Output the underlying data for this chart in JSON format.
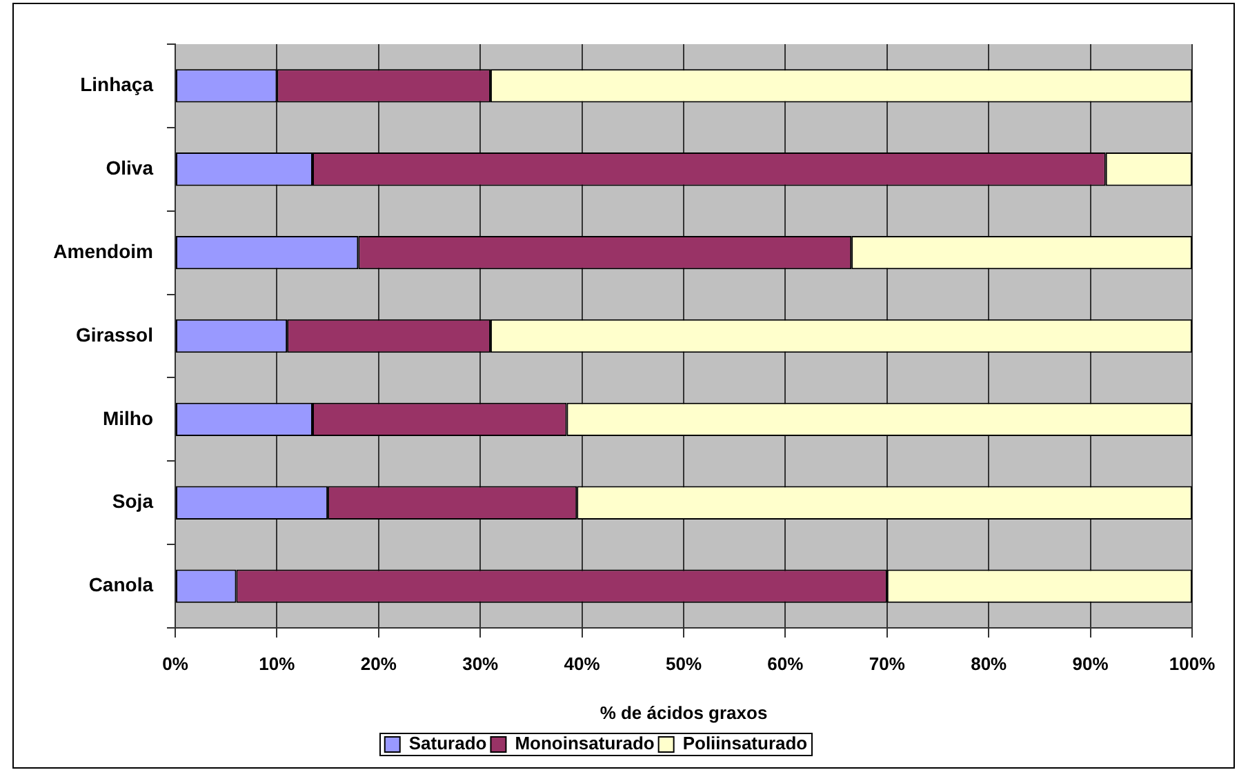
{
  "chart_data": {
    "type": "bar",
    "orientation": "horizontal",
    "stacked": true,
    "categories": [
      "Linhaça",
      "Oliva",
      "Amendoim",
      "Girassol",
      "Milho",
      "Soja",
      "Canola"
    ],
    "series": [
      {
        "name": "Saturado",
        "color": "#9999ff",
        "values": [
          10,
          13.5,
          18,
          11,
          13.5,
          15,
          6
        ]
      },
      {
        "name": "Monoinsaturado",
        "color": "#993366",
        "values": [
          21,
          78,
          48.5,
          20,
          25,
          24.5,
          64
        ]
      },
      {
        "name": "Poliinsaturado",
        "color": "#ffffcc",
        "values": [
          69,
          8.5,
          33.5,
          69,
          61.5,
          60.5,
          30
        ]
      }
    ],
    "xlabel": "% de ácidos graxos",
    "xlim": [
      0,
      100
    ],
    "xticks": [
      {
        "value": 0,
        "label": "0%"
      },
      {
        "value": 10,
        "label": "10%"
      },
      {
        "value": 20,
        "label": "20%"
      },
      {
        "value": 30,
        "label": "30%"
      },
      {
        "value": 40,
        "label": "40%"
      },
      {
        "value": 50,
        "label": "50%"
      },
      {
        "value": 60,
        "label": "60%"
      },
      {
        "value": 70,
        "label": "70%"
      },
      {
        "value": 80,
        "label": "80%"
      },
      {
        "value": 90,
        "label": "90%"
      },
      {
        "value": 100,
        "label": "100%"
      }
    ],
    "grid": "x",
    "legend": "bottom"
  }
}
